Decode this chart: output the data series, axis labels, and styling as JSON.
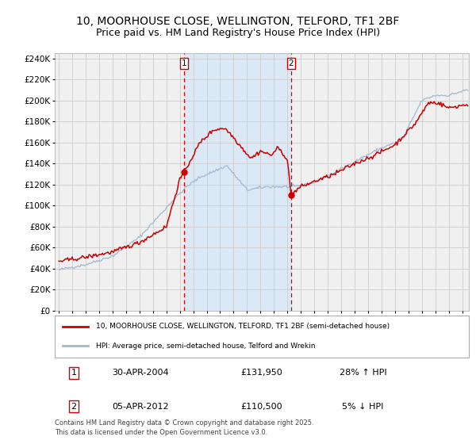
{
  "title": "10, MOORHOUSE CLOSE, WELLINGTON, TELFORD, TF1 2BF",
  "subtitle": "Price paid vs. HM Land Registry's House Price Index (HPI)",
  "background_color": "#ffffff",
  "plot_background": "#f0f0f0",
  "grid_color": "#cccccc",
  "hpi_line_color": "#a0b8d0",
  "price_line_color": "#cc0000",
  "shade_color": "#d8e8f8",
  "dashed_line_color": "#dd0000",
  "sale1_date_num": 2004.33,
  "sale1_price": 131950,
  "sale1_label": "1",
  "sale2_date_num": 2012.27,
  "sale2_price": 110500,
  "sale2_label": "2",
  "xmin": 1994.7,
  "xmax": 2025.5,
  "ymin": 0,
  "ymax": 245000,
  "yticks": [
    0,
    20000,
    40000,
    60000,
    80000,
    100000,
    120000,
    140000,
    160000,
    180000,
    200000,
    220000,
    240000
  ],
  "legend_entry1": "10, MOORHOUSE CLOSE, WELLINGTON, TELFORD, TF1 2BF (semi-detached house)",
  "legend_entry2": "HPI: Average price, semi-detached house, Telford and Wrekin",
  "table_row1": [
    "1",
    "30-APR-2004",
    "£131,950",
    "28% ↑ HPI"
  ],
  "table_row2": [
    "2",
    "05-APR-2012",
    "£110,500",
    "5% ↓ HPI"
  ],
  "footnote": "Contains HM Land Registry data © Crown copyright and database right 2025.\nThis data is licensed under the Open Government Licence v3.0.",
  "title_fontsize": 10,
  "subtitle_fontsize": 9
}
